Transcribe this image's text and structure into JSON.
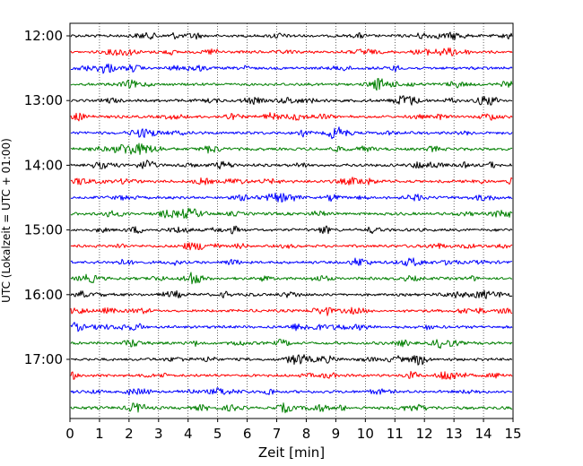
{
  "chart_data": {
    "type": "line",
    "title": "",
    "xlabel": "Zeit  [min]",
    "ylabel": "UTC (Lokalzeit = UTC + 01:00)",
    "x_range": [
      0,
      15
    ],
    "x_ticks": [
      "0",
      "1",
      "2",
      "3",
      "4",
      "5",
      "6",
      "7",
      "8",
      "9",
      "10",
      "11",
      "12",
      "13",
      "14",
      "15"
    ],
    "y_ticks": [
      "12:00",
      "13:00",
      "14:00",
      "15:00",
      "16:00",
      "17:00"
    ],
    "start_time": "12:00",
    "trace_interval_min": 15,
    "trace_count": 24,
    "trace_colors": [
      "#000000",
      "#ff0000",
      "#0000ff",
      "#007f00"
    ],
    "grid": "vertical dotted lines at each minute",
    "legend": "none"
  }
}
